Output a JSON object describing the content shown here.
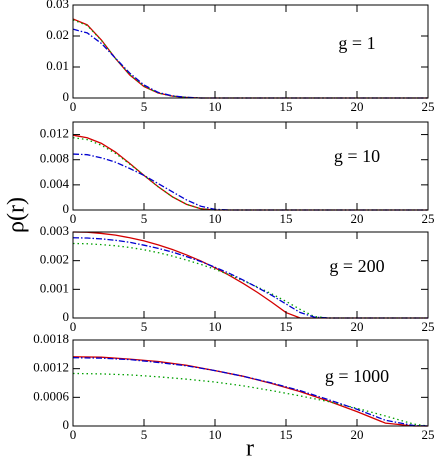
{
  "xlabel": "r",
  "ylabel": "ρ(r)",
  "chart_data": [
    {
      "type": "line",
      "annotation": "g = 1",
      "x": [
        0,
        1,
        2,
        3,
        4,
        5,
        6,
        7,
        8,
        9,
        10,
        25
      ],
      "series": [
        {
          "color": "#d40000",
          "style": "solid",
          "values": [
            0.0255,
            0.0236,
            0.0187,
            0.0127,
            0.0074,
            0.0037,
            0.0016,
            0.0006,
            0.0002,
            0,
            0,
            0
          ]
        },
        {
          "color": "#00a000",
          "style": "dotted",
          "values": [
            0.0252,
            0.0234,
            0.0186,
            0.0127,
            0.0075,
            0.0038,
            0.0016,
            0.0006,
            0.0002,
            0,
            0,
            0
          ]
        },
        {
          "color": "#0000d0",
          "style": "dashdot",
          "values": [
            0.0222,
            0.021,
            0.0176,
            0.0128,
            0.008,
            0.0042,
            0.0018,
            0.0007,
            0.0002,
            0,
            0,
            0
          ]
        }
      ],
      "xlim": [
        0,
        25
      ],
      "xticks": [
        0,
        5,
        10,
        15,
        20,
        25
      ],
      "ylim": [
        0,
        0.03
      ],
      "yticks": [
        0,
        0.01,
        0.02,
        0.03
      ]
    },
    {
      "type": "line",
      "annotation": "g = 10",
      "x": [
        0,
        1,
        2,
        3,
        4,
        5,
        6,
        7,
        8,
        9,
        10,
        11,
        12,
        25
      ],
      "series": [
        {
          "color": "#d40000",
          "style": "solid",
          "values": [
            0.0119,
            0.0115,
            0.0106,
            0.0092,
            0.0074,
            0.0055,
            0.0037,
            0.0021,
            0.0009,
            0.0002,
            0,
            0,
            0,
            0
          ]
        },
        {
          "color": "#00a000",
          "style": "dotted",
          "values": [
            0.0115,
            0.0112,
            0.0103,
            0.009,
            0.0073,
            0.0055,
            0.0037,
            0.0021,
            0.0009,
            0.0002,
            0,
            0,
            0,
            0
          ]
        },
        {
          "color": "#0000d0",
          "style": "dashdot",
          "values": [
            0.0089,
            0.0088,
            0.0083,
            0.0076,
            0.0066,
            0.0055,
            0.0042,
            0.0029,
            0.0016,
            0.0006,
            0.0001,
            0,
            0,
            0
          ]
        }
      ],
      "xlim": [
        0,
        25
      ],
      "xticks": [
        0,
        5,
        10,
        15,
        20,
        25
      ],
      "ylim": [
        0,
        0.014
      ],
      "yticks": [
        0,
        0.004,
        0.008,
        0.012
      ]
    },
    {
      "type": "line",
      "annotation": "g = 200",
      "x": [
        0,
        1,
        2,
        3,
        4,
        5,
        6,
        7,
        8,
        9,
        10,
        11,
        12,
        13,
        14,
        15,
        16,
        17,
        18,
        25
      ],
      "series": [
        {
          "color": "#d40000",
          "style": "solid",
          "values": [
            0.003,
            0.00299,
            0.00295,
            0.00289,
            0.0028,
            0.00269,
            0.00255,
            0.00239,
            0.0022,
            0.00199,
            0.00175,
            0.00149,
            0.0012,
            0.00089,
            0.00055,
            0.00019,
            0,
            0,
            0,
            0
          ]
        },
        {
          "color": "#00a000",
          "style": "dotted",
          "values": [
            0.0026,
            0.00259,
            0.00256,
            0.00252,
            0.00246,
            0.00238,
            0.00228,
            0.00216,
            0.00202,
            0.00187,
            0.0017,
            0.00151,
            0.0013,
            0.00108,
            0.00084,
            0.00058,
            0.0003,
            5e-05,
            0,
            0
          ]
        },
        {
          "color": "#0000d0",
          "style": "dashdot",
          "values": [
            0.0028,
            0.00279,
            0.00276,
            0.00271,
            0.00264,
            0.00254,
            0.00243,
            0.0023,
            0.00214,
            0.00197,
            0.00177,
            0.00156,
            0.00132,
            0.00106,
            0.00079,
            0.00049,
            0.00019,
            3e-05,
            0,
            0
          ]
        }
      ],
      "xlim": [
        0,
        25
      ],
      "xticks": [
        0,
        5,
        10,
        15,
        20,
        25
      ],
      "ylim": [
        0,
        0.003
      ],
      "yticks": [
        0,
        0.001,
        0.002,
        0.003
      ]
    },
    {
      "type": "line",
      "annotation": "g = 1000",
      "x": [
        0,
        2,
        4,
        6,
        8,
        10,
        12,
        14,
        16,
        18,
        20,
        22,
        24,
        25
      ],
      "series": [
        {
          "color": "#d40000",
          "style": "solid",
          "values": [
            0.00145,
            0.00144,
            0.0014,
            0.00135,
            0.00127,
            0.00116,
            0.00104,
            0.00089,
            0.00072,
            0.00052,
            0.0003,
            6e-05,
            0,
            0
          ]
        },
        {
          "color": "#00a000",
          "style": "dotted",
          "values": [
            0.0011,
            0.00109,
            0.00107,
            0.00103,
            0.00098,
            0.00092,
            0.00084,
            0.00074,
            0.00063,
            0.00051,
            0.00037,
            0.00021,
            4e-05,
            0
          ]
        },
        {
          "color": "#0000d0",
          "style": "dashdot",
          "values": [
            0.00143,
            0.00142,
            0.00139,
            0.00133,
            0.00126,
            0.00116,
            0.00104,
            0.0009,
            0.00074,
            0.00055,
            0.00035,
            0.00012,
            1e-05,
            0
          ]
        }
      ],
      "xlim": [
        0,
        25
      ],
      "xticks": [
        0,
        5,
        10,
        15,
        20,
        25
      ],
      "ylim": [
        0,
        0.0018
      ],
      "yticks": [
        0,
        0.0006,
        0.0012,
        0.0018
      ]
    }
  ]
}
